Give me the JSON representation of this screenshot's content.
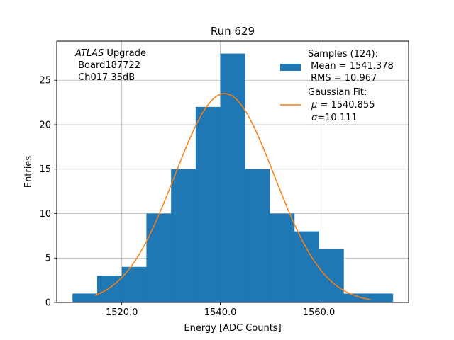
{
  "chart_data": {
    "type": "bar",
    "title": "Run 629",
    "xlabel": "Energy [ADC Counts]",
    "ylabel": "Entries",
    "xlim": [
      1506.8,
      1578.2
    ],
    "ylim": [
      0,
      29.4
    ],
    "grid": true,
    "x_ticks": [
      1520.0,
      1540.0,
      1560.0
    ],
    "x_tick_labels": [
      "1520.0",
      "1540.0",
      "1560.0"
    ],
    "y_ticks": [
      0,
      5,
      10,
      15,
      20,
      25
    ],
    "y_tick_labels": [
      "0",
      "5",
      "10",
      "15",
      "20",
      "25"
    ],
    "bins": [
      {
        "x0": 1510.0,
        "x1": 1515.0,
        "count": 1
      },
      {
        "x0": 1515.0,
        "x1": 1520.0,
        "count": 3
      },
      {
        "x0": 1520.0,
        "x1": 1525.0,
        "count": 4
      },
      {
        "x0": 1525.0,
        "x1": 1530.0,
        "count": 10
      },
      {
        "x0": 1530.0,
        "x1": 1535.0,
        "count": 15
      },
      {
        "x0": 1535.0,
        "x1": 1540.0,
        "count": 22
      },
      {
        "x0": 1540.0,
        "x1": 1545.0,
        "count": 28
      },
      {
        "x0": 1545.0,
        "x1": 1550.0,
        "count": 15
      },
      {
        "x0": 1550.0,
        "x1": 1555.0,
        "count": 10
      },
      {
        "x0": 1555.0,
        "x1": 1560.0,
        "count": 8
      },
      {
        "x0": 1560.0,
        "x1": 1565.0,
        "count": 6
      },
      {
        "x0": 1565.0,
        "x1": 1570.0,
        "count": 1
      },
      {
        "x0": 1570.0,
        "x1": 1575.0,
        "count": 1
      }
    ],
    "fit": {
      "type": "gaussian",
      "mu": 1540.855,
      "sigma": 10.111,
      "amplitude": 23.5,
      "x_range": [
        1514.5,
        1570.5
      ]
    },
    "colors": {
      "bars": "#1f77b4",
      "fit_line": "#ff7f0e",
      "grid": "#b0b0b0"
    },
    "annotation": {
      "line1_italic": "ATLAS",
      "line1_rest": " Upgrade",
      "line2": " Board187722",
      "line3": " Ch017 35dB"
    },
    "legend": {
      "placement": "top-right",
      "samples_line1": "Samples (124):",
      "samples_line2": " Mean = 1541.378",
      "samples_line3": " RMS = 10.967",
      "fit_line1": "Gaussian Fit:",
      "fit_line2_sym": "μ",
      "fit_line2_rest": " = 1540.855",
      "fit_line3_sym": "σ",
      "fit_line3_rest": "=10.111"
    }
  }
}
